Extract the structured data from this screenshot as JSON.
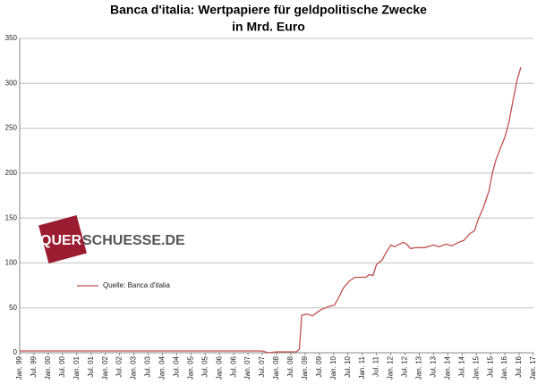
{
  "chart_data": {
    "type": "line",
    "title": [
      "Banca d'italia: Wertpapiere  für geldpolitische Zwecke",
      "in Mrd. Euro"
    ],
    "watermark": [
      "QUER",
      "SCHUESSE.DE"
    ],
    "series": [
      {
        "name": "Quelle: Banca d'italia",
        "color": "#c0504d",
        "x": [
          1999.0,
          2007.5,
          2007.7,
          2008.0,
          2008.7,
          2008.8,
          2008.88,
          2009.09,
          2009.25,
          2009.56,
          2009.88,
          2010.03,
          2010.19,
          2010.34,
          2010.56,
          2010.75,
          2011.13,
          2011.25,
          2011.38,
          2011.5,
          2011.69,
          2011.81,
          2012.0,
          2012.13,
          2012.25,
          2012.44,
          2012.56,
          2012.69,
          2012.88,
          2013.19,
          2013.5,
          2013.69,
          2013.94,
          2014.13,
          2014.38,
          2014.56,
          2014.75,
          2014.94,
          2015.06,
          2015.25,
          2015.44,
          2015.56,
          2015.69,
          2015.81,
          2016.0,
          2016.13,
          2016.31,
          2016.44,
          2016.56
        ],
        "values": [
          2,
          2,
          0,
          1,
          1,
          4,
          42,
          43,
          41,
          48,
          52,
          53,
          62,
          72,
          80,
          84,
          84,
          87,
          86,
          98,
          103,
          110,
          120,
          118,
          120,
          123,
          121,
          116,
          117,
          117,
          120,
          118,
          121,
          119,
          123,
          125,
          132,
          136,
          148,
          162,
          180,
          200,
          215,
          225,
          240,
          255,
          285,
          305,
          318
        ]
      }
    ],
    "xlim": [
      1999,
      2017
    ],
    "xticks": [
      {
        "value": 1999,
        "label": "Jan. 99"
      },
      {
        "value": 1999.5,
        "label": "Jul. 99"
      },
      {
        "value": 2000,
        "label": "Jan. 00"
      },
      {
        "value": 2000.5,
        "label": "Jul. 00"
      },
      {
        "value": 2001,
        "label": "Jan. 01"
      },
      {
        "value": 2001.5,
        "label": "Jul. 01"
      },
      {
        "value": 2002,
        "label": "Jan. 02"
      },
      {
        "value": 2002.5,
        "label": "Jul. 02"
      },
      {
        "value": 2003,
        "label": "Jan. 03"
      },
      {
        "value": 2003.5,
        "label": "Jul. 03"
      },
      {
        "value": 2004,
        "label": "Jan. 04"
      },
      {
        "value": 2004.5,
        "label": "Jul. 04"
      },
      {
        "value": 2005,
        "label": "Jan. 05"
      },
      {
        "value": 2005.5,
        "label": "Jul. 05"
      },
      {
        "value": 2006,
        "label": "Jan. 06"
      },
      {
        "value": 2006.5,
        "label": "Jul. 06"
      },
      {
        "value": 2007,
        "label": "Jan. 07"
      },
      {
        "value": 2007.5,
        "label": "Jul. 07"
      },
      {
        "value": 2008,
        "label": "Jan. 08"
      },
      {
        "value": 2008.5,
        "label": "Jul. 08"
      },
      {
        "value": 2009,
        "label": "Jan. 09"
      },
      {
        "value": 2009.5,
        "label": "Jul. 09"
      },
      {
        "value": 2010,
        "label": "Jan. 10"
      },
      {
        "value": 2010.5,
        "label": "Jul. 10"
      },
      {
        "value": 2011,
        "label": "Jan. 11"
      },
      {
        "value": 2011.5,
        "label": "Jul. 11"
      },
      {
        "value": 2012,
        "label": "Jan. 12"
      },
      {
        "value": 2012.5,
        "label": "Jul. 12"
      },
      {
        "value": 2013,
        "label": "Jan. 13"
      },
      {
        "value": 2013.5,
        "label": "Jul. 13"
      },
      {
        "value": 2014,
        "label": "Jan. 14"
      },
      {
        "value": 2014.5,
        "label": "Jul. 14"
      },
      {
        "value": 2015,
        "label": "Jan. 15"
      },
      {
        "value": 2015.5,
        "label": "Jul. 15"
      },
      {
        "value": 2016,
        "label": "Jan. 16"
      },
      {
        "value": 2016.5,
        "label": "Jul. 16"
      },
      {
        "value": 2017,
        "label": "Jan. 17"
      }
    ],
    "ylim": [
      0,
      350
    ],
    "yticks": [
      0,
      50,
      100,
      150,
      200,
      250,
      300,
      350
    ],
    "grid": true
  }
}
